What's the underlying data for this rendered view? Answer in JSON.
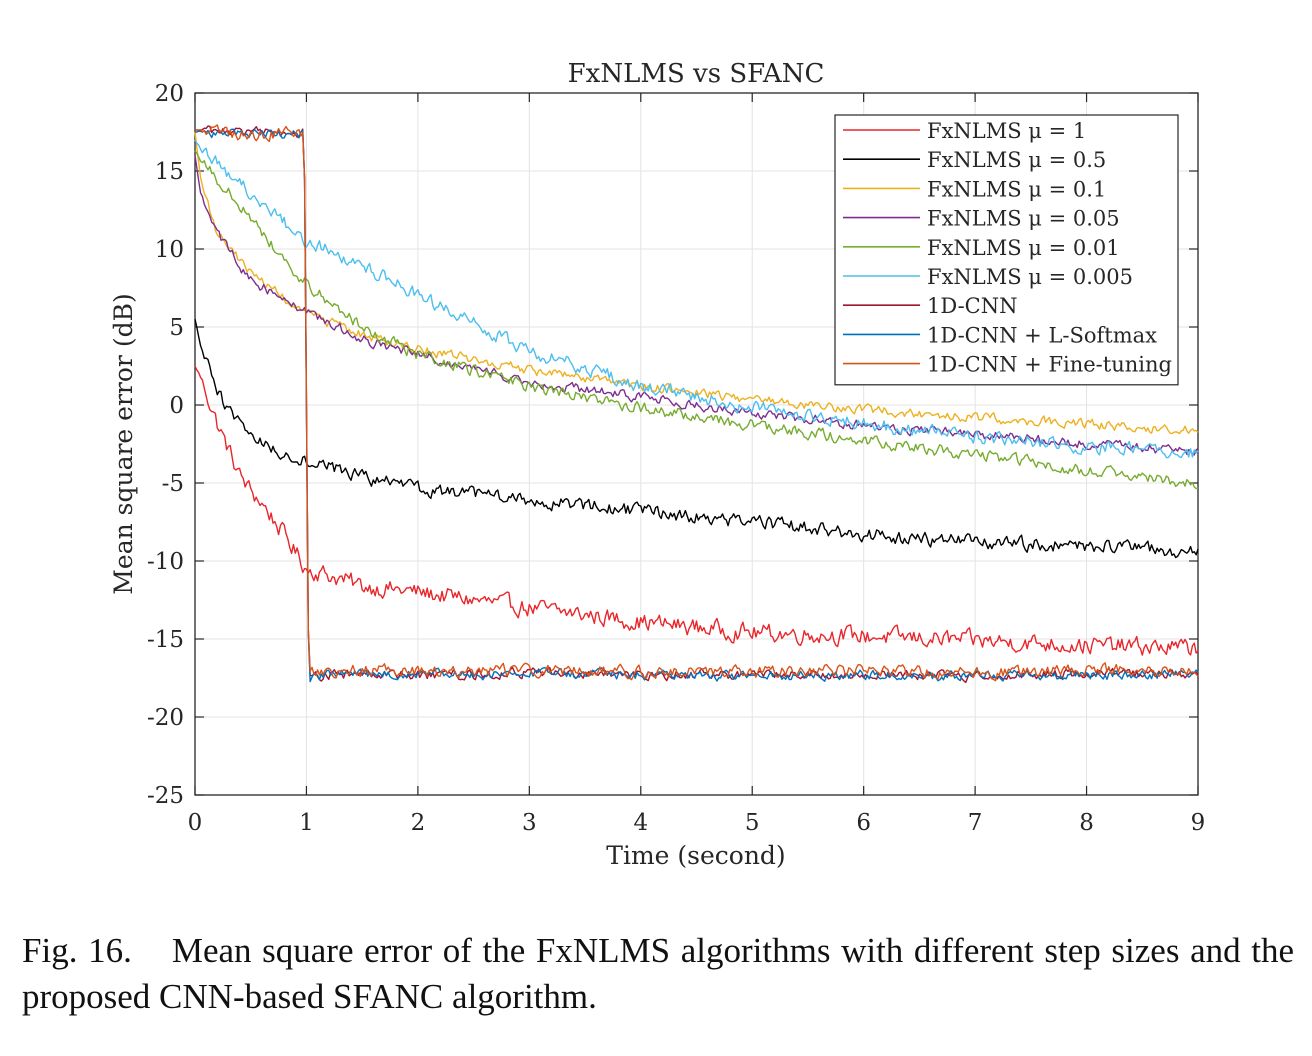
{
  "chart_data": {
    "type": "line",
    "title": "FxNLMS vs SFANC",
    "xlabel": "Time (second)",
    "ylabel": "Mean square error (dB)",
    "xlim": [
      0,
      9
    ],
    "ylim": [
      -25,
      20
    ],
    "xticks": [
      0,
      1,
      2,
      3,
      4,
      5,
      6,
      7,
      8,
      9
    ],
    "yticks": [
      20,
      15,
      10,
      5,
      0,
      -5,
      -10,
      -15,
      -20,
      -25
    ],
    "grid": true,
    "legend_position": "top-right",
    "series": [
      {
        "name": "FxNLMS μ = 1",
        "color": "#e8262b",
        "noise": 0.45,
        "x": [
          0,
          0.05,
          0.2,
          0.4,
          0.5,
          0.6,
          0.8,
          1.0,
          1.2,
          1.5,
          2,
          3,
          4,
          5,
          6,
          7,
          8,
          9
        ],
        "y": [
          2.5,
          1.8,
          -1.2,
          -4.5,
          -5.5,
          -6.3,
          -8.3,
          -10.5,
          -10.9,
          -11.6,
          -12.0,
          -13.0,
          -13.9,
          -14.6,
          -14.8,
          -15.1,
          -15.4,
          -15.6
        ]
      },
      {
        "name": "FxNLMS μ = 0.5",
        "color": "#000000",
        "noise": 0.35,
        "x": [
          0,
          0.05,
          0.2,
          0.4,
          0.6,
          0.8,
          1.0,
          1.5,
          2,
          3,
          4,
          5,
          6,
          7,
          8,
          9
        ],
        "y": [
          5.5,
          3.8,
          0.8,
          -1.2,
          -2.4,
          -3.2,
          -3.5,
          -4.6,
          -5.4,
          -6.1,
          -6.8,
          -7.5,
          -8.3,
          -8.8,
          -9.0,
          -9.5
        ]
      },
      {
        "name": "FxNLMS μ = 0.1",
        "color": "#edb120",
        "noise": 0.25,
        "x": [
          0,
          0.05,
          0.2,
          0.5,
          1.0,
          1.5,
          2,
          3,
          4,
          5,
          6,
          7,
          8,
          9
        ],
        "y": [
          17.5,
          14.5,
          11.0,
          8.5,
          5.8,
          4.5,
          3.6,
          2.2,
          1.2,
          0.4,
          -0.3,
          -0.8,
          -1.2,
          -1.7
        ]
      },
      {
        "name": "FxNLMS μ = 0.05",
        "color": "#7e2f8e",
        "noise": 0.25,
        "x": [
          0,
          0.05,
          0.2,
          0.5,
          1.0,
          1.5,
          2,
          3,
          4,
          5,
          6,
          7,
          8,
          9
        ],
        "y": [
          16.0,
          13.5,
          11.0,
          8.0,
          6.0,
          4.2,
          3.2,
          1.5,
          0.5,
          -0.5,
          -1.3,
          -1.9,
          -2.5,
          -3.0
        ]
      },
      {
        "name": "FxNLMS μ = 0.01",
        "color": "#77ac30",
        "noise": 0.3,
        "x": [
          0,
          0.05,
          0.2,
          0.5,
          0.8,
          1.0,
          1.5,
          2,
          3,
          4,
          5,
          6,
          7,
          8,
          9
        ],
        "y": [
          16.3,
          15.8,
          14.5,
          12.0,
          9.3,
          7.8,
          5.0,
          3.2,
          1.2,
          -0.2,
          -1.3,
          -2.3,
          -3.2,
          -4.2,
          -5.0
        ]
      },
      {
        "name": "FxNLMS μ = 0.005",
        "color": "#4dbeee",
        "noise": 0.35,
        "x": [
          0,
          0.05,
          0.2,
          0.5,
          1.0,
          1.5,
          2,
          2.5,
          3,
          4,
          5,
          6,
          7,
          8,
          9
        ],
        "y": [
          17.0,
          16.5,
          15.5,
          13.5,
          10.5,
          9.0,
          7.0,
          5.2,
          3.5,
          1.2,
          -0.2,
          -1.2,
          -2.0,
          -2.6,
          -3.1
        ]
      },
      {
        "name": "1D-CNN",
        "color": "#a2142f",
        "noise": 0.25,
        "x": [
          0,
          0.02,
          0.5,
          0.98,
          1.02,
          1.5,
          2,
          3,
          4,
          5,
          6,
          7,
          8,
          9
        ],
        "y": [
          17.6,
          17.6,
          17.5,
          17.4,
          -17.3,
          -17.2,
          -17.3,
          -17.2,
          -17.3,
          -17.3,
          -17.2,
          -17.4,
          -17.2,
          -17.3
        ]
      },
      {
        "name": "1D-CNN + L-Softmax",
        "color": "#0072bd",
        "noise": 0.25,
        "x": [
          0,
          0.02,
          0.5,
          0.98,
          1.02,
          1.5,
          2,
          3,
          4,
          5,
          6,
          7,
          8,
          9
        ],
        "y": [
          17.5,
          17.5,
          17.4,
          17.4,
          -17.4,
          -17.2,
          -17.3,
          -17.2,
          -17.3,
          -17.4,
          -17.3,
          -17.4,
          -17.3,
          -17.3
        ]
      },
      {
        "name": "1D-CNN + Fine-tuning",
        "color": "#d95319",
        "noise": 0.3,
        "x": [
          0,
          0.02,
          0.5,
          0.98,
          1.02,
          1.5,
          2,
          3,
          4,
          5,
          6,
          7,
          8,
          9
        ],
        "y": [
          17.6,
          17.6,
          17.3,
          17.5,
          -17.1,
          -17.0,
          -17.1,
          -17.0,
          -17.1,
          -17.1,
          -17.0,
          -17.2,
          -17.0,
          -17.0
        ]
      }
    ]
  },
  "caption": {
    "label": "Fig. 16.",
    "text": "Mean square error of the FxNLMS algorithms with different step sizes and the proposed CNN-based SFANC algorithm."
  }
}
